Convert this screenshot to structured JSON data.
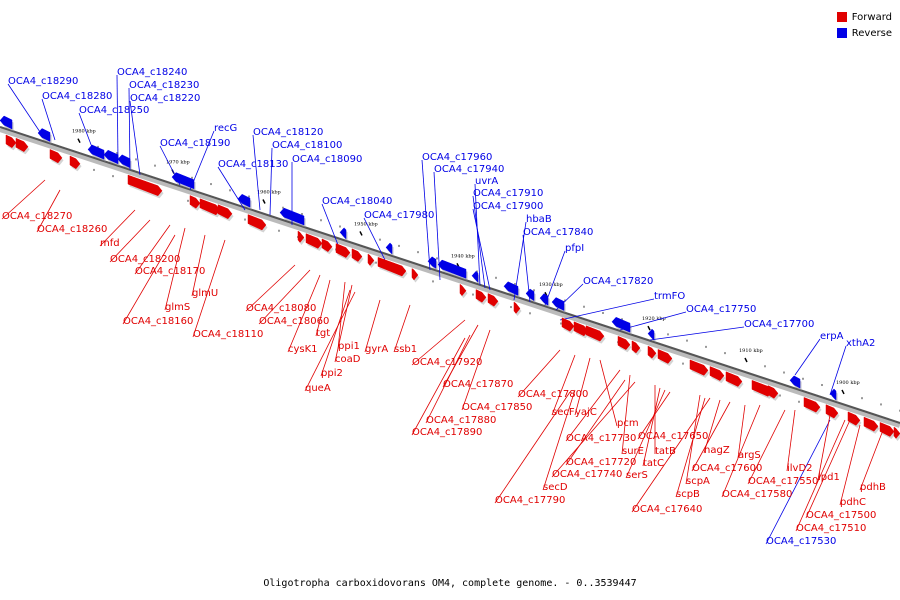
{
  "legend": {
    "forward_label": "Forward",
    "reverse_label": "Reverse",
    "forward_color": "#e00000",
    "reverse_color": "#0000e6"
  },
  "caption": "Oligotropha carboxidovorans OM4, complete genome. - 0..3539447",
  "ticks": [
    "1980 kbp",
    "1970 kbp",
    "1960 kbp",
    "1950 kbp",
    "1940 kbp",
    "1930 kbp",
    "1920 kbp",
    "1910 kbp",
    "1900 kbp"
  ],
  "reverse_genes": [
    "OCA4_c18290",
    "OCA4_c18240",
    "OCA4_c18280",
    "OCA4_c18230",
    "OCA4_c18220",
    "OCA4_c18250",
    "recG",
    "OCA4_c18190",
    "OCA4_c18120",
    "OCA4_c18100",
    "OCA4_c18130",
    "OCA4_c18090",
    "OCA4_c17960",
    "OCA4_c17940",
    "uvrA",
    "OCA4_c17910",
    "OCA4_c17900",
    "OCA4_c18040",
    "OCA4_c17980",
    "hbaB",
    "OCA4_c17840",
    "pfpI",
    "OCA4_c17820",
    "trmFO",
    "OCA4_c17750",
    "OCA4_c17700",
    "erpA",
    "xthA2",
    "OCA4_c17530"
  ],
  "forward_genes": [
    "OCA4_c18270",
    "OCA4_c18260",
    "mfd",
    "OCA4_c18200",
    "OCA4_c18170",
    "glmS",
    "glmU",
    "OCA4_c18160",
    "OCA4_c18110",
    "OCA4_c18080",
    "OCA4_c18060",
    "cysK1",
    "tgt",
    "ppi1",
    "coaD",
    "ppi2",
    "queA",
    "gyrA",
    "ssb1",
    "OCA4_c17920",
    "OCA4_c17870",
    "OCA4_c17850",
    "OCA4_c17880",
    "OCA4_c17890",
    "OCA4_c17800",
    "secF",
    "yajC",
    "pcm",
    "OCA4_c17730",
    "surE",
    "OCA4_c17720",
    "OCA4_c17740",
    "tatB",
    "tatC",
    "serS",
    "OCA4_c17650",
    "secD",
    "OCA4_c17790",
    "scpA",
    "scpB",
    "OCA4_c17640",
    "nagZ",
    "OCA4_c17600",
    "argS",
    "OCA4_c17580",
    "ilvD2",
    "OCA4_c17550",
    "lpd1",
    "OCA4_c17500",
    "OCA4_c17510",
    "pdhC",
    "pdhB"
  ]
}
